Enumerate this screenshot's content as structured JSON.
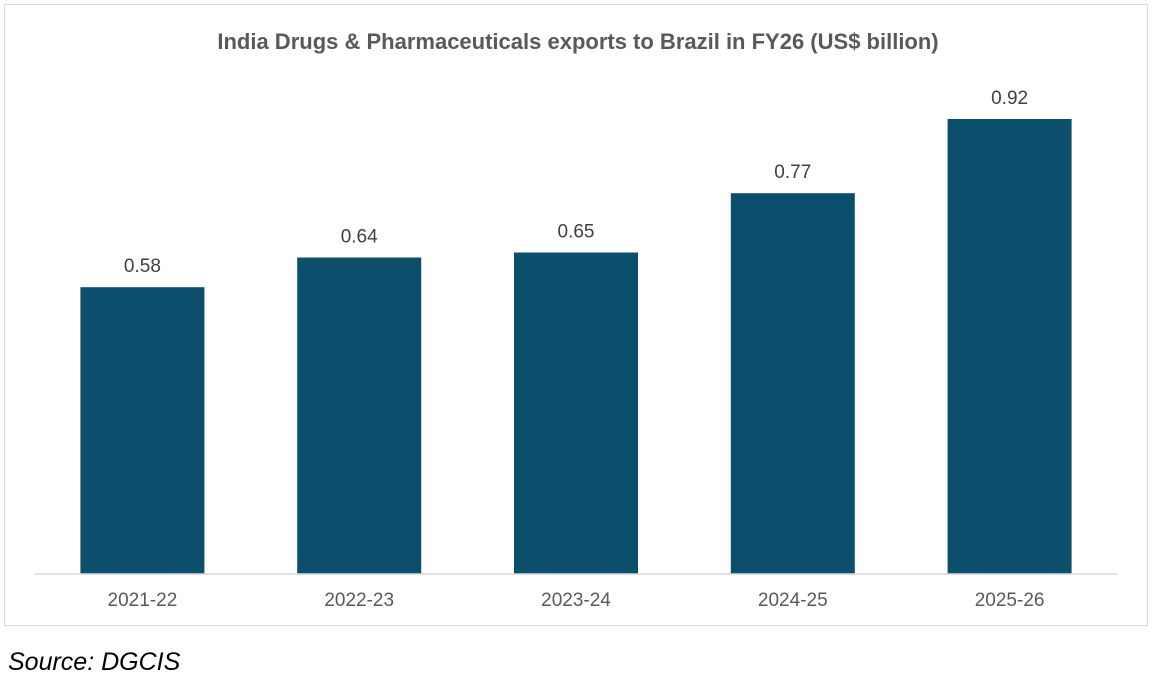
{
  "chart_data": {
    "type": "bar",
    "title": "India Drugs & Pharmaceuticals exports to Brazil in FY26 (US$ billion)",
    "xlabel": "",
    "ylabel": "",
    "categories": [
      "2021-22",
      "2022-23",
      "2023-24",
      "2024-25",
      "2025-26"
    ],
    "values": [
      0.58,
      0.64,
      0.65,
      0.77,
      0.92
    ],
    "data_labels": [
      "0.58",
      "0.64",
      "0.65",
      "0.77",
      "0.92"
    ],
    "ylim": [
      0,
      0.92
    ],
    "grid": false,
    "legend": "none",
    "bar_color": "#0b4f6c"
  },
  "source_note": "Source: DGCIS"
}
